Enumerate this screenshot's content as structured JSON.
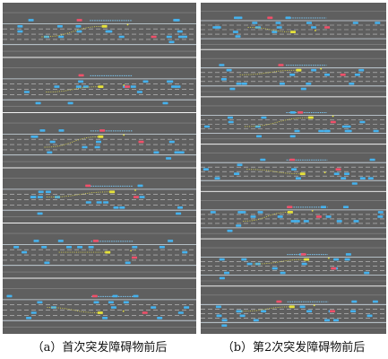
{
  "figure": {
    "caption_a": "（a）首次突发障碍物前后",
    "caption_b": "（b）第2次突发障碍物前后"
  },
  "colors": {
    "background": "#5f5f5f",
    "road_edge": "#d8e4ee",
    "lane_line": "#e9e9e9",
    "separator": "#f2f2f2",
    "vehicle": "#46b2ee",
    "vehicle_label": "#7cc6f2",
    "obstacle_vehicle": "#f0506a",
    "ego_vehicle": "#e6e23a",
    "trajectory": "#d9d24a"
  }
}
